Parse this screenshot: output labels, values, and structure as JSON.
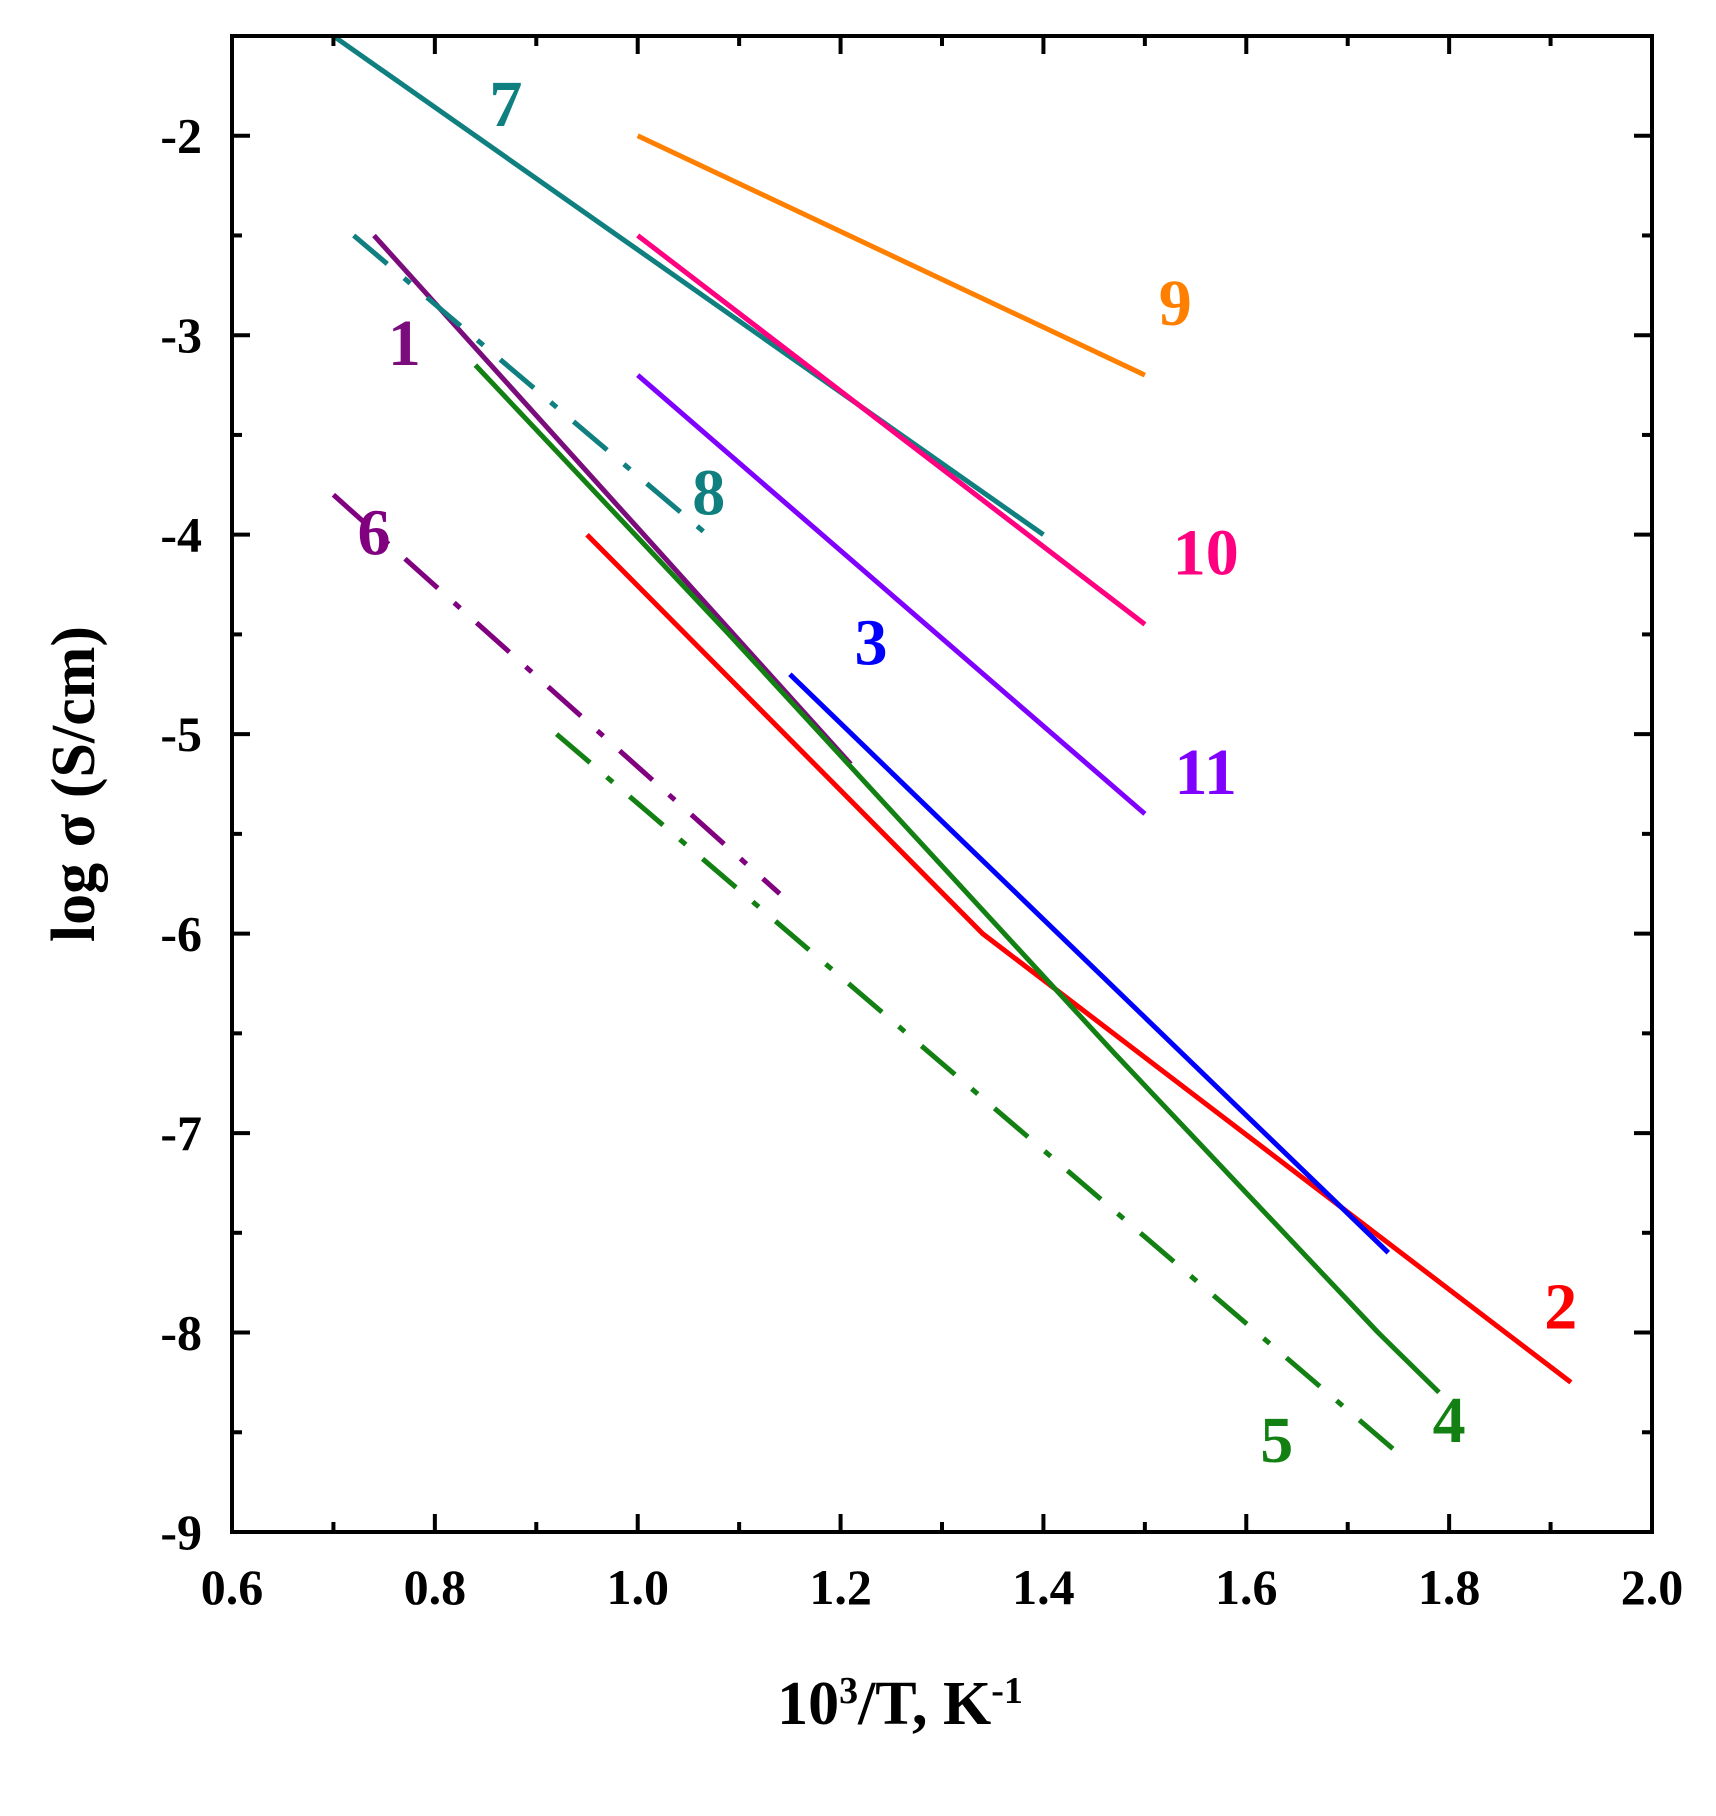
{
  "chart_data": {
    "type": "line",
    "title": "",
    "xlabel": {
      "base": "10",
      "sup1": "3",
      "mid": "/T, K",
      "sup2": "-1"
    },
    "ylabel": "log σ (S/cm)",
    "xlim": [
      0.6,
      2.0
    ],
    "ylim": [
      -9,
      -1.5
    ],
    "x_ticks": [
      "0.6",
      "0.8",
      "1.0",
      "1.2",
      "1.4",
      "1.6",
      "1.8",
      "2.0"
    ],
    "y_ticks": [
      "-2",
      "-3",
      "-4",
      "-5",
      "-6",
      "-7",
      "-8",
      "-9"
    ],
    "grid": false,
    "series": [
      {
        "name": "1",
        "color": "#7b0c7b",
        "style": "solid",
        "label_pos": [
          0.77,
          -3.15
        ],
        "points": [
          [
            0.74,
            -2.5
          ],
          [
            1.21,
            -5.15
          ]
        ]
      },
      {
        "name": "2",
        "color": "#ff0000",
        "style": "solid",
        "label_pos": [
          1.91,
          -7.98
        ],
        "points": [
          [
            0.95,
            -4.0
          ],
          [
            1.34,
            -6.0
          ],
          [
            1.92,
            -8.25
          ]
        ]
      },
      {
        "name": "3",
        "color": "#0000ff",
        "style": "solid",
        "label_pos": [
          1.23,
          -4.65
        ],
        "points": [
          [
            1.15,
            -4.7
          ],
          [
            1.74,
            -7.6
          ]
        ]
      },
      {
        "name": "4",
        "color": "#138013",
        "style": "solid",
        "label_pos": [
          1.8,
          -8.55
        ],
        "points": [
          [
            0.84,
            -3.15
          ],
          [
            1.09,
            -4.5
          ],
          [
            1.47,
            -6.6
          ],
          [
            1.73,
            -8.0
          ],
          [
            1.79,
            -8.3
          ]
        ]
      },
      {
        "name": "5",
        "color": "#138013",
        "style": "dashdot",
        "label_pos": [
          1.63,
          -8.65
        ],
        "points": [
          [
            0.92,
            -5.0
          ],
          [
            1.76,
            -8.65
          ]
        ]
      },
      {
        "name": "6",
        "color": "#800080",
        "style": "dashdot",
        "label_pos": [
          0.74,
          -4.1
        ],
        "points": [
          [
            0.7,
            -3.8
          ],
          [
            1.14,
            -5.8
          ]
        ]
      },
      {
        "name": "7",
        "color": "#0f7f7f",
        "style": "solid",
        "label_pos": [
          0.87,
          -1.95
        ],
        "points": [
          [
            0.7,
            -1.5
          ],
          [
            1.4,
            -4.0
          ]
        ]
      },
      {
        "name": "8",
        "color": "#0f7f7f",
        "style": "dashdot",
        "label_pos": [
          1.07,
          -3.9
        ],
        "points": [
          [
            0.72,
            -2.5
          ],
          [
            1.08,
            -4.05
          ]
        ]
      },
      {
        "name": "9",
        "color": "#ff8000",
        "style": "solid",
        "label_pos": [
          1.53,
          -2.95
        ],
        "points": [
          [
            1.0,
            -2.0
          ],
          [
            1.5,
            -3.2
          ]
        ]
      },
      {
        "name": "10",
        "color": "#ff0080",
        "style": "solid",
        "label_pos": [
          1.56,
          -4.2
        ],
        "points": [
          [
            1.0,
            -2.5
          ],
          [
            1.5,
            -4.45
          ]
        ]
      },
      {
        "name": "11",
        "color": "#8000ff",
        "style": "solid",
        "label_pos": [
          1.56,
          -5.3
        ],
        "points": [
          [
            1.0,
            -3.2
          ],
          [
            1.5,
            -5.4
          ]
        ]
      }
    ]
  }
}
